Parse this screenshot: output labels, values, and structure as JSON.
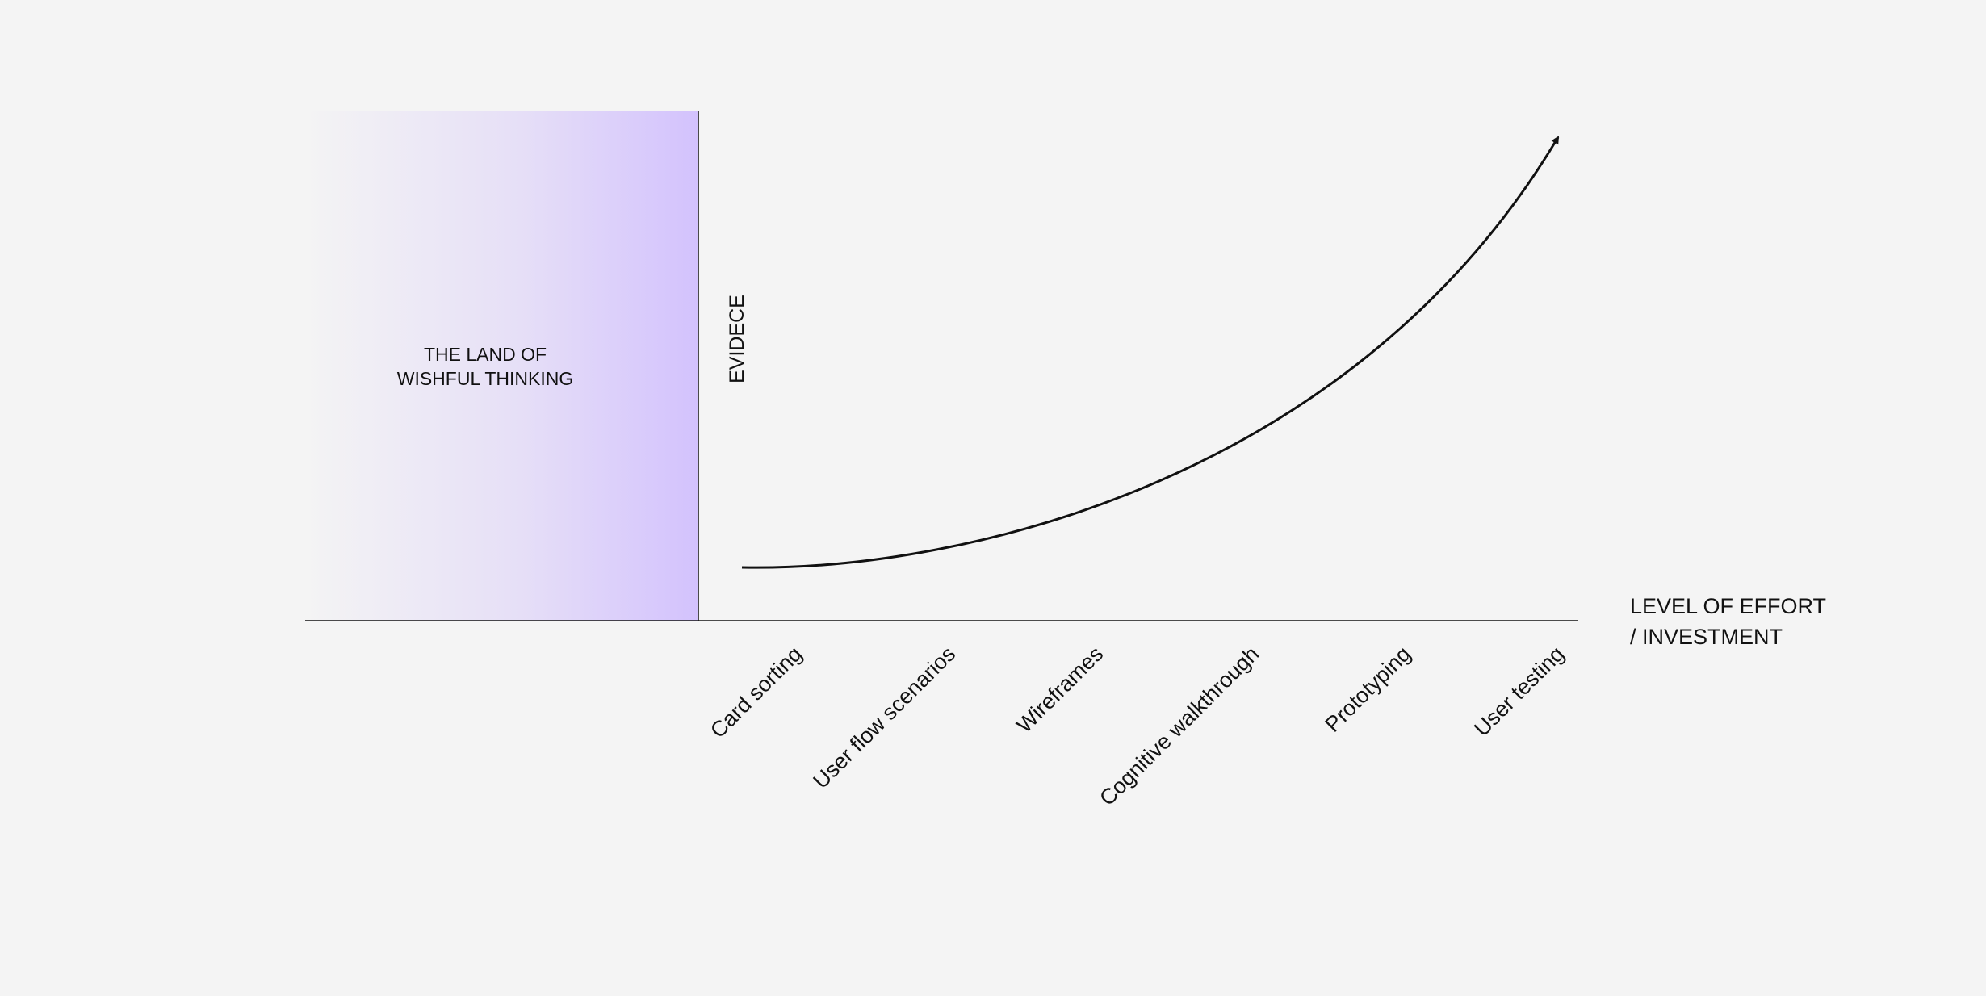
{
  "region": {
    "label_lines": [
      "THE LAND OF",
      "WISHFUL THINKING"
    ]
  },
  "y_axis_label": "EVIDECE",
  "x_axis_label_lines": [
    "LEVEL OF EFFORT",
    "/ INVESTMENT"
  ],
  "stages": [
    "Card sorting",
    "User flow scenarios",
    "Wireframes",
    "Cognitive walkthrough",
    "Prototyping",
    "User testing"
  ]
}
